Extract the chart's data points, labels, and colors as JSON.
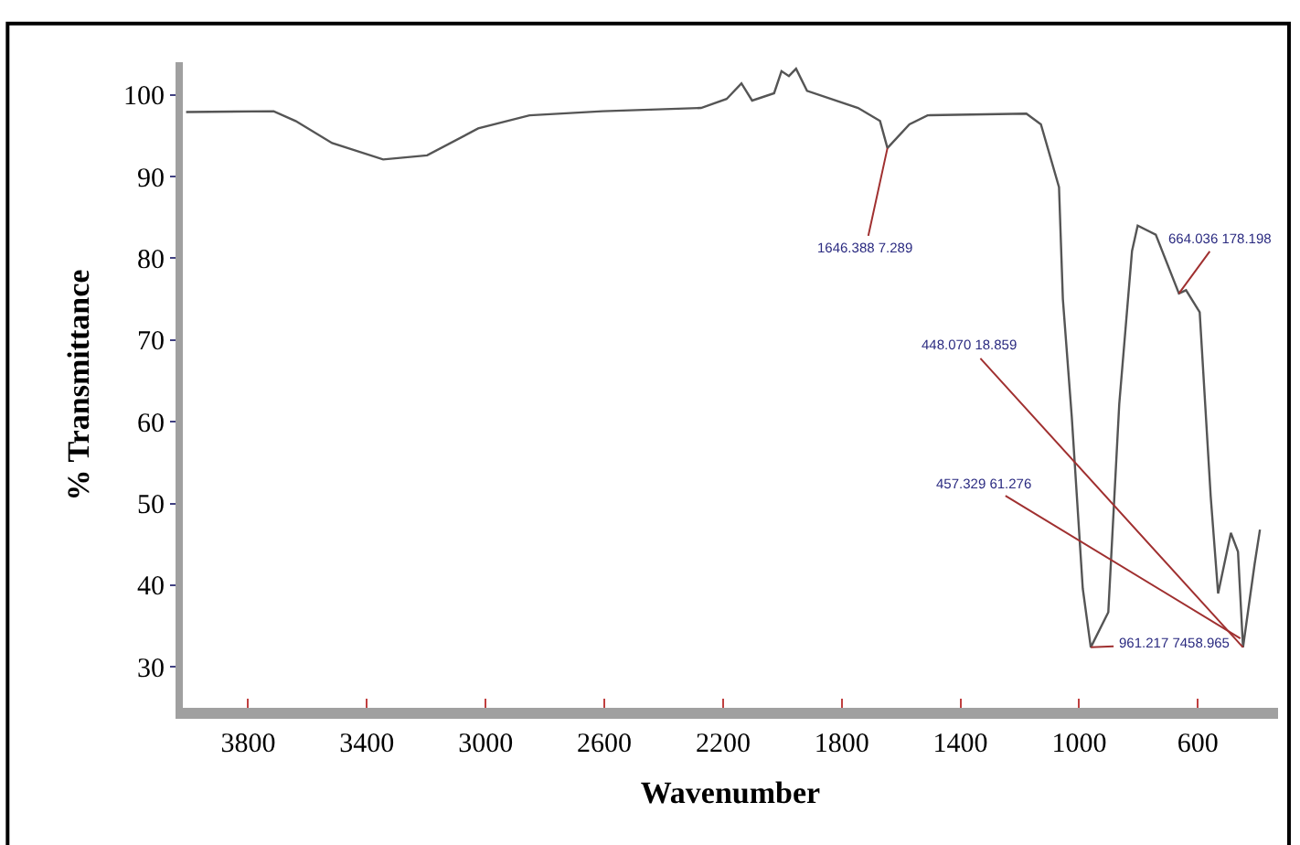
{
  "chart_data": {
    "type": "line",
    "xlabel": "Wavenumber",
    "ylabel": "% Transmittance",
    "xlim": [
      4020,
      330
    ],
    "xticks": [
      3800,
      3400,
      3000,
      2600,
      2200,
      1800,
      1400,
      1000,
      600
    ],
    "ylim": [
      25,
      104
    ],
    "yticks": [
      30,
      40,
      50,
      60,
      70,
      80,
      90,
      100
    ],
    "marker": "none",
    "line_style": "solid",
    "series": [
      {
        "color": "#555555",
        "x": [
          4009,
          3714,
          3640,
          3517,
          3345,
          3197,
          3025,
          2852,
          2606,
          2274,
          2188,
          2138,
          2102,
          2028,
          2003,
          1978,
          1954,
          1917,
          1745,
          1671,
          1646,
          1572,
          1511,
          1178,
          1129,
          1068,
          1055,
          1025,
          988,
          961,
          902,
          865,
          822,
          803,
          742,
          664,
          640,
          594,
          557,
          532,
          489,
          465,
          448,
          409,
          391
        ],
        "values": [
          97.9,
          98.0,
          96.8,
          94.1,
          92.1,
          92.6,
          95.9,
          97.5,
          98.0,
          98.4,
          99.5,
          101.4,
          99.3,
          100.2,
          102.9,
          102.3,
          103.2,
          100.5,
          98.4,
          96.8,
          93.5,
          96.4,
          97.5,
          97.7,
          96.4,
          88.7,
          75,
          60.6,
          39.6,
          32.4,
          36.7,
          62.2,
          80.9,
          84.0,
          82.9,
          75.7,
          76.1,
          73.4,
          50.9,
          39.0,
          46.4,
          44.1,
          32.4,
          42.6,
          46.8
        ]
      }
    ],
    "annotations": [
      {
        "text": "1646.388 7.289",
        "x": 1646,
        "y": 93.5
      },
      {
        "text": "664.036 178.198",
        "x": 664,
        "y": 75.7
      },
      {
        "text": "448.070 18.859",
        "x": 448,
        "y": 32.4
      },
      {
        "text": "457.329 61.276",
        "x": 457,
        "y": 33.5
      },
      {
        "text": "961.217 7458.965",
        "x": 961,
        "y": 32.4
      }
    ]
  }
}
